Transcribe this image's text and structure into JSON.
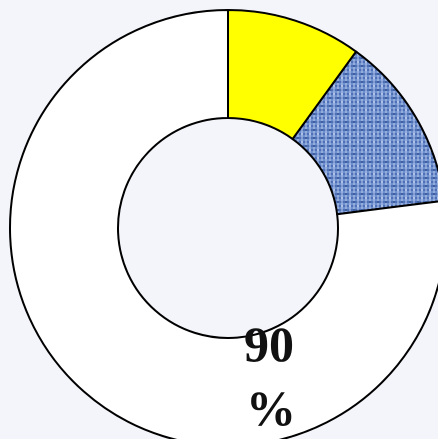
{
  "chart_data": {
    "type": "pie",
    "style": "donut",
    "slices": [
      {
        "label": "",
        "value": 10,
        "color": "#ffff00",
        "pattern": "solid"
      },
      {
        "label": "",
        "value": 13,
        "color": "#6f8fcf",
        "pattern": "woven-texture"
      },
      {
        "label": "",
        "value": 77,
        "color": "#ffffff",
        "pattern": "solid"
      }
    ],
    "annotations": [
      {
        "text": "90",
        "line": 1
      },
      {
        "text": "%",
        "line": 2
      }
    ],
    "outline_color": "#000000",
    "background": "#f4f5fa"
  }
}
